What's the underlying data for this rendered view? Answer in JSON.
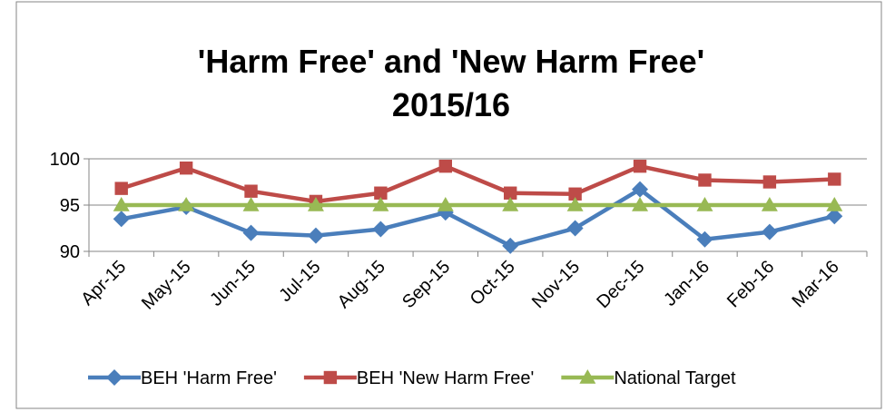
{
  "chart_data": {
    "type": "line",
    "title": [
      "'Harm Free' and 'New Harm Free'",
      "2015/16"
    ],
    "categories": [
      "Apr-15",
      "May-15",
      "Jun-15",
      "Jul-15",
      "Aug-15",
      "Sep-15",
      "Oct-15",
      "Nov-15",
      "Dec-15",
      "Jan-16",
      "Feb-16",
      "Mar-16"
    ],
    "series": [
      {
        "name": "BEH 'Harm Free'",
        "color": "#4a7ebb",
        "marker": "diamond",
        "values": [
          93.5,
          94.8,
          92.0,
          91.7,
          92.4,
          94.2,
          90.6,
          92.5,
          96.7,
          91.3,
          92.1,
          93.8
        ]
      },
      {
        "name": "BEH 'New Harm Free'",
        "color": "#be4b48",
        "marker": "square",
        "values": [
          96.8,
          99.0,
          96.5,
          95.4,
          96.3,
          99.2,
          96.3,
          96.2,
          99.2,
          97.7,
          97.5,
          97.8
        ]
      },
      {
        "name": "National Target",
        "color": "#98b954",
        "marker": "triangle",
        "values": [
          95,
          95,
          95,
          95,
          95,
          95,
          95,
          95,
          95,
          95,
          95,
          95
        ]
      }
    ],
    "ylim": [
      90,
      100
    ],
    "yticks": [
      90,
      95,
      100
    ],
    "grid": true,
    "legend": "bottom"
  }
}
